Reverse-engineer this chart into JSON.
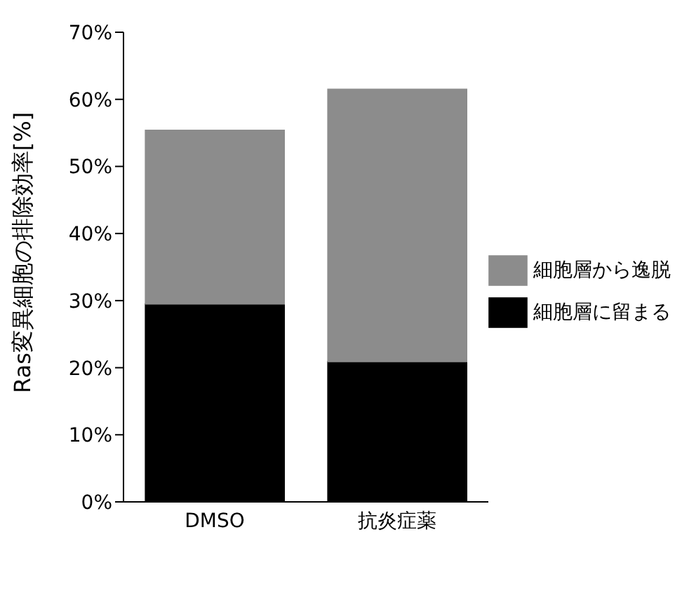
{
  "chart_data": {
    "type": "bar",
    "stacked": true,
    "ylabel": "Ras変異細胞の排除効率[%]",
    "categories": [
      "DMSO",
      "抗炎症薬"
    ],
    "series": [
      {
        "name": "細胞層に留まる",
        "color": "#000000",
        "values": [
          29.5,
          20.9
        ]
      },
      {
        "name": "細胞層から逸脱",
        "color": "#8c8c8c",
        "values": [
          25.9,
          40.6
        ]
      }
    ],
    "ylim": [
      0,
      70
    ],
    "yticks": [
      {
        "value": 0,
        "label": "0%"
      },
      {
        "value": 10,
        "label": "10%"
      },
      {
        "value": 20,
        "label": "20%"
      },
      {
        "value": 30,
        "label": "30%"
      },
      {
        "value": 40,
        "label": "40%"
      },
      {
        "value": 50,
        "label": "50%"
      },
      {
        "value": 60,
        "label": "60%"
      },
      {
        "value": 70,
        "label": "70%"
      }
    ],
    "legend": "right",
    "grid": false
  }
}
